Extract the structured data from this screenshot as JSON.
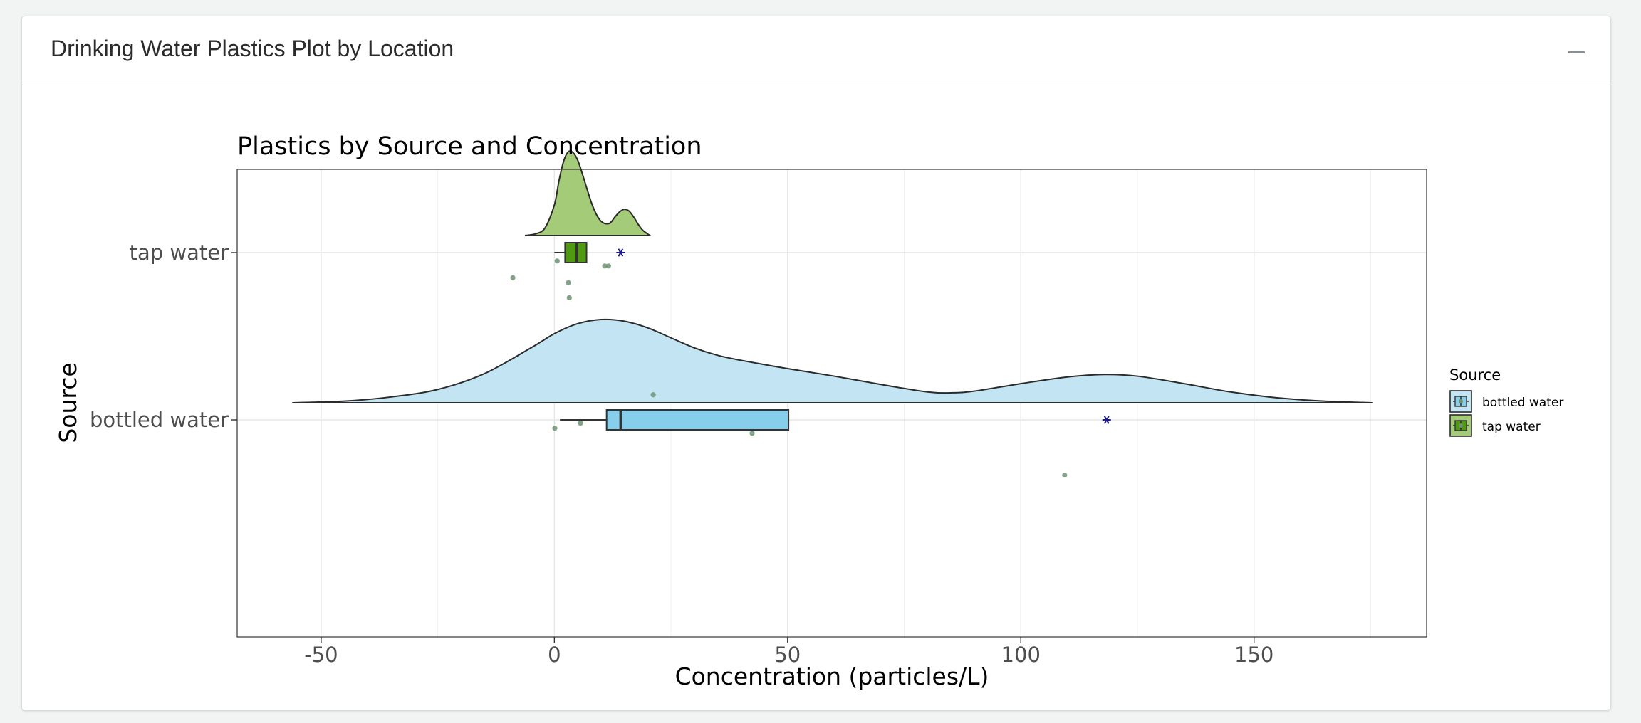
{
  "card": {
    "title": "Drinking Water Plastics Plot by Location",
    "collapse_icon": "minus-icon"
  },
  "chart_data": {
    "type": "raincloud",
    "title": "Plastics by Source and Concentration",
    "xlabel": "Concentration (particles/L)",
    "ylabel": "Source",
    "xlim": [
      -68,
      187
    ],
    "x_ticks": [
      -50,
      0,
      50,
      100,
      150
    ],
    "x_tick_labels": [
      "-50",
      "0",
      "50",
      "100",
      "150"
    ],
    "categories": [
      "tap water",
      "bottled water"
    ],
    "legend": {
      "title": "Source",
      "position": "right",
      "entries": [
        "bottled water",
        "tap water"
      ]
    },
    "grid": true,
    "series": [
      {
        "name": "tap water",
        "fill": "#a4cb78",
        "box_fill": "#4f9a10",
        "box": {
          "whisker_low": 0,
          "q1": 2.3,
          "median": 4.8,
          "q3": 6.9,
          "whisker_high": 6.9
        },
        "outliers": [
          14.2
        ],
        "mean": 14.2,
        "points": [
          {
            "x": -8.9,
            "y_offset": -0.15
          },
          {
            "x": 0.6,
            "y_offset": -0.05
          },
          {
            "x": 3.0,
            "y_offset": -0.18
          },
          {
            "x": 3.2,
            "y_offset": -0.27
          },
          {
            "x": 10.8,
            "y_offset": -0.08
          },
          {
            "x": 11.6,
            "y_offset": -0.08
          }
        ],
        "density": [
          [
            -6.3,
            0
          ],
          [
            -4,
            0.02
          ],
          [
            -2,
            0.09
          ],
          [
            0,
            0.36
          ],
          [
            1,
            0.65
          ],
          [
            2,
            0.88
          ],
          [
            3,
            0.99
          ],
          [
            4,
            0.98
          ],
          [
            5,
            0.89
          ],
          [
            6,
            0.73
          ],
          [
            7,
            0.55
          ],
          [
            8,
            0.38
          ],
          [
            9,
            0.25
          ],
          [
            10,
            0.17
          ],
          [
            11,
            0.14
          ],
          [
            12,
            0.15
          ],
          [
            13,
            0.22
          ],
          [
            14,
            0.28
          ],
          [
            15,
            0.31
          ],
          [
            16,
            0.29
          ],
          [
            17,
            0.22
          ],
          [
            18,
            0.13
          ],
          [
            19,
            0.06
          ],
          [
            20.5,
            0
          ]
        ]
      },
      {
        "name": "bottled water",
        "fill": "#c2e4f3",
        "box_fill": "#87ceeb",
        "box": {
          "whisker_low": 1.2,
          "q1": 11.2,
          "median": 14.2,
          "q3": 50.2,
          "whisker_high": 50.2
        },
        "outliers": [
          118.4
        ],
        "mean": 118.4,
        "points": [
          {
            "x": 21.2,
            "y_offset": 0.15
          },
          {
            "x": 0.1,
            "y_offset": -0.05
          },
          {
            "x": 5.6,
            "y_offset": -0.02
          },
          {
            "x": 42.4,
            "y_offset": -0.08
          },
          {
            "x": 109.4,
            "y_offset": -0.33
          }
        ],
        "density": [
          [
            -56.2,
            0
          ],
          [
            -45,
            0.02
          ],
          [
            -35,
            0.07
          ],
          [
            -25,
            0.16
          ],
          [
            -15,
            0.35
          ],
          [
            -5,
            0.66
          ],
          [
            0,
            0.83
          ],
          [
            5,
            0.95
          ],
          [
            10,
            1.0
          ],
          [
            15,
            0.98
          ],
          [
            20,
            0.9
          ],
          [
            25,
            0.78
          ],
          [
            30,
            0.66
          ],
          [
            35,
            0.57
          ],
          [
            40,
            0.51
          ],
          [
            50,
            0.41
          ],
          [
            60,
            0.32
          ],
          [
            70,
            0.22
          ],
          [
            80,
            0.13
          ],
          [
            85,
            0.12
          ],
          [
            90,
            0.14
          ],
          [
            100,
            0.23
          ],
          [
            110,
            0.31
          ],
          [
            118,
            0.34
          ],
          [
            125,
            0.32
          ],
          [
            135,
            0.23
          ],
          [
            145,
            0.13
          ],
          [
            155,
            0.06
          ],
          [
            165,
            0.02
          ],
          [
            175.5,
            0
          ]
        ]
      }
    ]
  }
}
